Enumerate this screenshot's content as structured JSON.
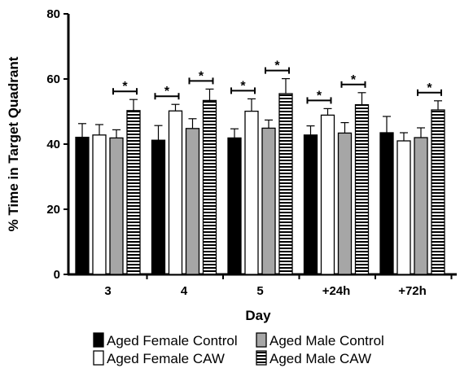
{
  "chart_data": {
    "type": "bar",
    "xlabel": "Day",
    "ylabel": "% Time in Target Quadrant",
    "ylim": [
      0,
      80
    ],
    "yticks": [
      "0",
      "20",
      "40",
      "60",
      "80"
    ],
    "categories": [
      "3",
      "4",
      "5",
      "+24h",
      "+72h"
    ],
    "series": [
      {
        "name": "Aged Female Control",
        "values": [
          42.1,
          41.2,
          41.9,
          42.8,
          43.5
        ],
        "errors": [
          4.2,
          4.5,
          2.8,
          2.8,
          5.0
        ],
        "fill": "#000000",
        "pattern": "solid"
      },
      {
        "name": "Aged Female CAW",
        "values": [
          42.8,
          50.2,
          50.1,
          48.9,
          41.0
        ],
        "errors": [
          3.2,
          2.0,
          3.8,
          2.0,
          2.5
        ],
        "fill": "#ffffff",
        "pattern": "solid"
      },
      {
        "name": "Aged Male Control",
        "values": [
          41.9,
          44.8,
          44.9,
          43.4,
          42.0
        ],
        "errors": [
          2.5,
          3.0,
          2.5,
          3.2,
          3.0
        ],
        "fill": "#a6a6a6",
        "pattern": "solid"
      },
      {
        "name": "Aged Male CAW",
        "values": [
          50.3,
          53.4,
          55.5,
          52.1,
          50.5
        ],
        "errors": [
          3.4,
          3.5,
          4.6,
          3.7,
          2.8
        ],
        "fill": "#ffffff",
        "pattern": "hstripes"
      }
    ],
    "significance": [
      {
        "category": "3",
        "between": [
          2,
          3
        ],
        "label": "*"
      },
      {
        "category": "4",
        "between": [
          0,
          1
        ],
        "label": "*"
      },
      {
        "category": "4",
        "between": [
          2,
          3
        ],
        "label": "*"
      },
      {
        "category": "5",
        "between": [
          0,
          1
        ],
        "label": "*"
      },
      {
        "category": "5",
        "between": [
          2,
          3
        ],
        "label": "*"
      },
      {
        "category": "+24h",
        "between": [
          0,
          1
        ],
        "label": "*"
      },
      {
        "category": "+24h",
        "between": [
          2,
          3
        ],
        "label": "*"
      },
      {
        "category": "+72h",
        "between": [
          2,
          3
        ],
        "label": "*"
      }
    ],
    "legend_position": "bottom",
    "grid": false
  }
}
